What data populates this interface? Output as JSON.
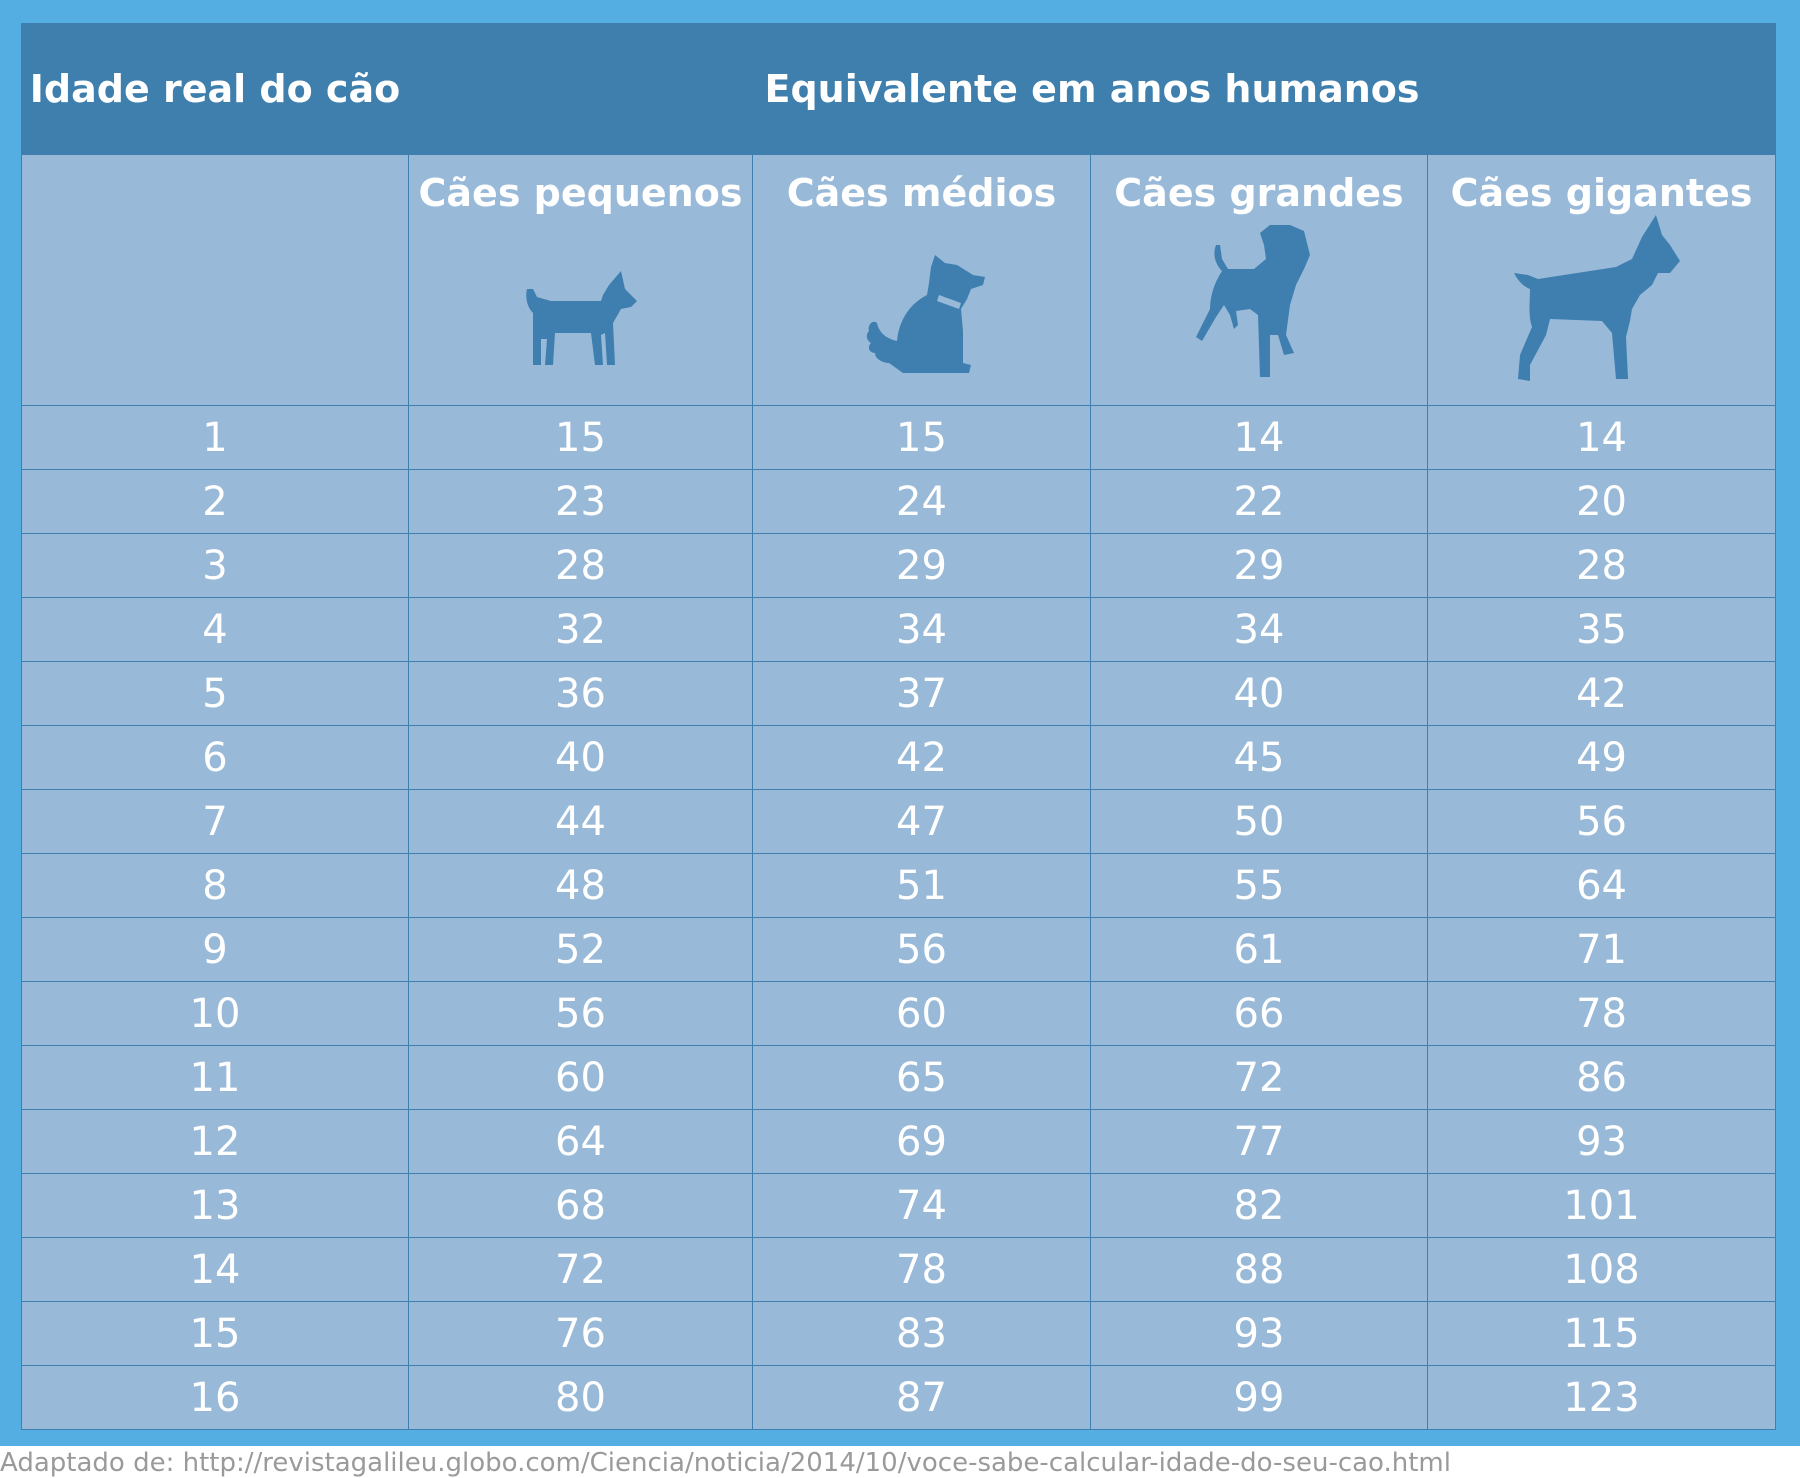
{
  "colors": {
    "frame": "#55aee2",
    "header_bg": "#3e7fae",
    "body_bg": "#98b9d8",
    "icon": "#3e7fb0",
    "text": "#ffffff",
    "source_text": "#9a9a9a"
  },
  "header": {
    "age_label": "Idade real do cão",
    "equivalent_label": "Equivalente em anos humanos"
  },
  "columns": [
    {
      "label": "Cães pequenos",
      "icon": "small-dog-icon"
    },
    {
      "label": "Cães médios",
      "icon": "medium-dog-icon"
    },
    {
      "label": "Cães grandes",
      "icon": "large-dog-icon"
    },
    {
      "label": "Cães gigantes",
      "icon": "giant-dog-icon"
    }
  ],
  "chart_data": {
    "type": "table",
    "columns": [
      "Idade real do cão",
      "Cães pequenos",
      "Cães médios",
      "Cães grandes",
      "Cães gigantes"
    ],
    "rows": [
      [
        "1",
        "15",
        "15",
        "14",
        "14"
      ],
      [
        "2",
        "23",
        "24",
        "22",
        "20"
      ],
      [
        "3",
        "28",
        "29",
        "29",
        "28"
      ],
      [
        "4",
        "32",
        "34",
        "34",
        "35"
      ],
      [
        "5",
        "36",
        "37",
        "40",
        "42"
      ],
      [
        "6",
        "40",
        "42",
        "45",
        "49"
      ],
      [
        "7",
        "44",
        "47",
        "50",
        "56"
      ],
      [
        "8",
        "48",
        "51",
        "55",
        "64"
      ],
      [
        "9",
        "52",
        "56",
        "61",
        "71"
      ],
      [
        "10",
        "56",
        "60",
        "66",
        "78"
      ],
      [
        "11",
        "60",
        "65",
        "72",
        "86"
      ],
      [
        "12",
        "64",
        "69",
        "77",
        "93"
      ],
      [
        "13",
        "68",
        "74",
        "82",
        "101"
      ],
      [
        "14",
        "72",
        "78",
        "88",
        "108"
      ],
      [
        "15",
        "76",
        "83",
        "93",
        "115"
      ],
      [
        "16",
        "80",
        "87",
        "99",
        "123"
      ]
    ]
  },
  "source": "Adaptado de: http://revistagalileu.globo.com/Ciencia/noticia/2014/10/voce-sabe-calcular-idade-do-seu-cao.html"
}
